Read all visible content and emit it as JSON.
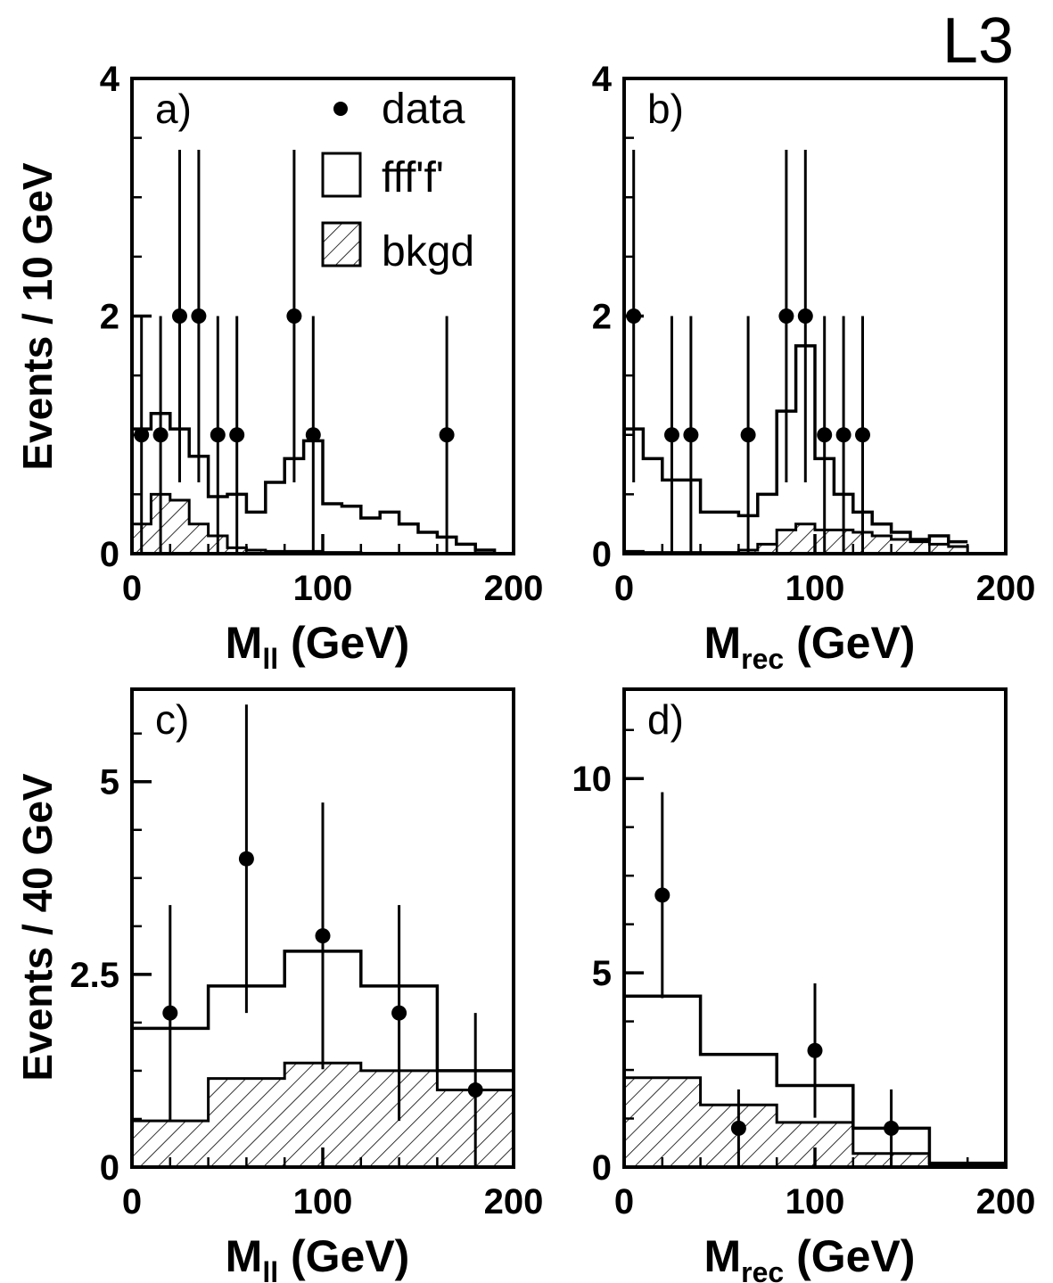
{
  "figure": {
    "brand": "L3",
    "ylabel_top": "Events / 10 GeV",
    "ylabel_bottom": "Events / 40 GeV",
    "legend": {
      "data": "data",
      "signal": "fff'f'",
      "background": "bkgd"
    }
  },
  "chart_data": [
    {
      "id": "a",
      "type": "histogram",
      "panel_label": "a)",
      "xlabel_main": "M",
      "xlabel_sub": "ll",
      "xlabel_unit": "(GeV)",
      "xlim": [
        0,
        200
      ],
      "ylim": [
        0,
        4
      ],
      "xticks": [
        0,
        100,
        200
      ],
      "yticks": [
        0,
        2,
        4
      ],
      "ytick_labels": [
        "0",
        "2",
        "4"
      ],
      "bin_edges": [
        0,
        10,
        20,
        30,
        40,
        50,
        60,
        70,
        80,
        90,
        100,
        110,
        120,
        130,
        140,
        150,
        160,
        170,
        180,
        190,
        200
      ],
      "series": [
        {
          "name": "fff'f'",
          "style": "step",
          "values": [
            1.05,
            1.18,
            1.05,
            0.82,
            0.48,
            0.5,
            0.35,
            0.6,
            0.8,
            0.95,
            0.42,
            0.4,
            0.3,
            0.35,
            0.25,
            0.18,
            0.14,
            0.08,
            0.03,
            0.0
          ]
        },
        {
          "name": "bkgd",
          "style": "hatched",
          "values": [
            0.25,
            0.5,
            0.45,
            0.25,
            0.15,
            0.05,
            0.03,
            0.02,
            0.02,
            0.02,
            0.01,
            0.01,
            0.0,
            0.0,
            0.0,
            0.0,
            0.0,
            0.0,
            0.0,
            0.0
          ]
        },
        {
          "name": "data",
          "style": "points",
          "x": [
            5,
            15,
            25,
            35,
            45,
            55,
            85,
            95,
            165
          ],
          "y": [
            1,
            1,
            2,
            2,
            1,
            1,
            2,
            1,
            1
          ],
          "err_low": [
            1,
            1,
            1.4,
            1.4,
            1,
            1,
            1.4,
            1,
            1
          ],
          "err_high": [
            1,
            1,
            1.4,
            1.4,
            1,
            1,
            1.4,
            1,
            1
          ]
        }
      ]
    },
    {
      "id": "b",
      "type": "histogram",
      "panel_label": "b)",
      "xlabel_main": "M",
      "xlabel_sub": "rec",
      "xlabel_unit": "(GeV)",
      "xlim": [
        0,
        200
      ],
      "ylim": [
        0,
        4
      ],
      "xticks": [
        0,
        100,
        200
      ],
      "yticks": [
        0,
        2,
        4
      ],
      "ytick_labels": [
        "0",
        "2",
        "4"
      ],
      "bin_edges": [
        0,
        10,
        20,
        30,
        40,
        50,
        60,
        70,
        80,
        90,
        100,
        110,
        120,
        130,
        140,
        150,
        160,
        170,
        180
      ],
      "series": [
        {
          "name": "fff'f'",
          "style": "step",
          "values": [
            1.05,
            0.8,
            0.62,
            0.62,
            0.35,
            0.35,
            0.32,
            0.5,
            1.2,
            1.75,
            0.8,
            0.5,
            0.35,
            0.25,
            0.18,
            0.12,
            0.15,
            0.1
          ]
        },
        {
          "name": "bkgd",
          "style": "hatched",
          "values": [
            0.02,
            0.01,
            0.01,
            0.01,
            0.01,
            0.01,
            0.03,
            0.08,
            0.2,
            0.25,
            0.2,
            0.2,
            0.18,
            0.15,
            0.12,
            0.1,
            0.08,
            0.06
          ]
        },
        {
          "name": "data",
          "style": "points",
          "x": [
            5,
            25,
            35,
            65,
            85,
            95,
            105,
            115,
            125
          ],
          "y": [
            2,
            1,
            1,
            1,
            2,
            2,
            1,
            1,
            1
          ],
          "err_low": [
            1.4,
            1,
            1,
            1,
            1.4,
            1.4,
            1,
            1,
            1
          ],
          "err_high": [
            1.4,
            1,
            1,
            1,
            1.4,
            1.4,
            1,
            1,
            1
          ]
        }
      ]
    },
    {
      "id": "c",
      "type": "histogram",
      "panel_label": "c)",
      "xlabel_main": "M",
      "xlabel_sub": "ll",
      "xlabel_unit": "(GeV)",
      "xlim": [
        0,
        200
      ],
      "ylim": [
        0,
        6.2
      ],
      "xticks": [
        0,
        100,
        200
      ],
      "yticks": [
        0,
        2.5,
        5
      ],
      "ytick_labels": [
        "0",
        "2.5",
        "5"
      ],
      "bin_edges": [
        0,
        40,
        80,
        120,
        160,
        200
      ],
      "series": [
        {
          "name": "fff'f'",
          "style": "step",
          "values": [
            1.8,
            2.35,
            2.8,
            2.35,
            1.25
          ]
        },
        {
          "name": "bkgd",
          "style": "hatched",
          "values": [
            0.6,
            1.15,
            1.35,
            1.25,
            1.0
          ]
        },
        {
          "name": "data",
          "style": "points",
          "x": [
            20,
            60,
            100,
            140,
            180
          ],
          "y": [
            2,
            4,
            3,
            2,
            1
          ],
          "err_low": [
            1.4,
            2.0,
            1.73,
            1.4,
            1.0
          ],
          "err_high": [
            1.4,
            2.0,
            1.73,
            1.4,
            1.0
          ]
        }
      ]
    },
    {
      "id": "d",
      "type": "histogram",
      "panel_label": "d)",
      "xlabel_main": "M",
      "xlabel_sub": "rec",
      "xlabel_unit": "(GeV)",
      "xlim": [
        0,
        200
      ],
      "ylim": [
        0,
        12.3
      ],
      "xticks": [
        0,
        100,
        200
      ],
      "yticks": [
        0,
        5,
        10
      ],
      "ytick_labels": [
        "0",
        "5",
        "10"
      ],
      "bin_edges": [
        0,
        40,
        80,
        120,
        160,
        200
      ],
      "series": [
        {
          "name": "fff'f'",
          "style": "step",
          "values": [
            4.4,
            2.9,
            2.1,
            1.0,
            0.1
          ]
        },
        {
          "name": "bkgd",
          "style": "hatched",
          "values": [
            2.3,
            1.6,
            1.15,
            0.35,
            0.05
          ]
        },
        {
          "name": "data",
          "style": "points",
          "x": [
            20,
            60,
            100,
            140
          ],
          "y": [
            7,
            1,
            3,
            1
          ],
          "err_low": [
            2.65,
            1.0,
            1.73,
            1.0
          ],
          "err_high": [
            2.65,
            1.0,
            1.73,
            1.0
          ]
        }
      ]
    }
  ]
}
